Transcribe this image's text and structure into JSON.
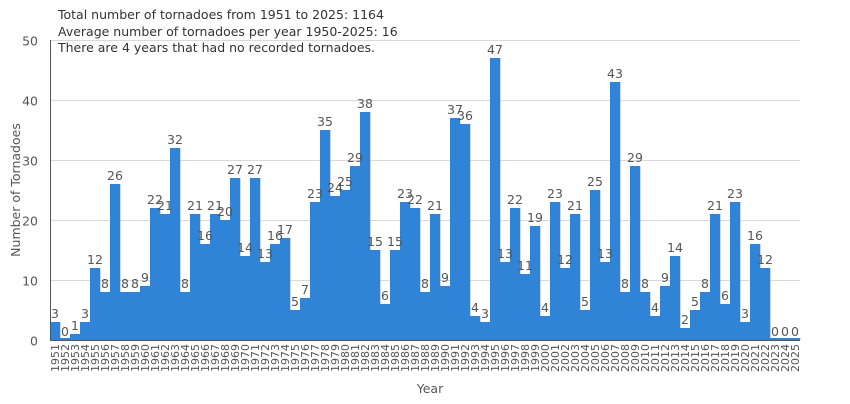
{
  "chart_data": {
    "type": "bar",
    "annotations": [
      "Total number of tornadoes from 1951 to 2025: 1164",
      "Average number of tornadoes per year 1950-2025: 16",
      "There are 4 years that had no recorded tornadoes."
    ],
    "xlabel": "Year",
    "ylabel": "Number of Tornadoes",
    "ylim": [
      0,
      50
    ],
    "yticks": [
      0,
      10,
      20,
      30,
      40,
      50
    ],
    "grid": true,
    "bar_color": "#2f84d8",
    "categories": [
      "1951",
      "1952",
      "1953",
      "1954",
      "1955",
      "1956",
      "1957",
      "1958",
      "1959",
      "1960",
      "1961",
      "1962",
      "1963",
      "1964",
      "1965",
      "1966",
      "1967",
      "1968",
      "1969",
      "1970",
      "1971",
      "1972",
      "1973",
      "1974",
      "1975",
      "1976",
      "1977",
      "1978",
      "1979",
      "1980",
      "1981",
      "1982",
      "1983",
      "1984",
      "1985",
      "1986",
      "1987",
      "1988",
      "1989",
      "1990",
      "1991",
      "1992",
      "1993",
      "1994",
      "1995",
      "1996",
      "1997",
      "1998",
      "1999",
      "2000",
      "2001",
      "2002",
      "2003",
      "2004",
      "2005",
      "2006",
      "2007",
      "2008",
      "2009",
      "2010",
      "2011",
      "2012",
      "2013",
      "2014",
      "2015",
      "2016",
      "2017",
      "2018",
      "2019",
      "2020",
      "2021",
      "2022",
      "2023",
      "2024",
      "2025"
    ],
    "values": [
      3,
      0,
      1,
      3,
      12,
      8,
      26,
      8,
      8,
      9,
      22,
      21,
      32,
      8,
      21,
      16,
      21,
      20,
      27,
      14,
      27,
      13,
      16,
      17,
      5,
      7,
      23,
      35,
      24,
      25,
      29,
      38,
      15,
      6,
      15,
      23,
      22,
      8,
      21,
      9,
      37,
      36,
      4,
      3,
      47,
      13,
      22,
      11,
      19,
      4,
      23,
      12,
      21,
      5,
      25,
      13,
      43,
      8,
      29,
      8,
      4,
      9,
      14,
      2,
      5,
      8,
      21,
      6,
      23,
      3,
      16,
      12,
      0,
      0,
      0
    ]
  }
}
